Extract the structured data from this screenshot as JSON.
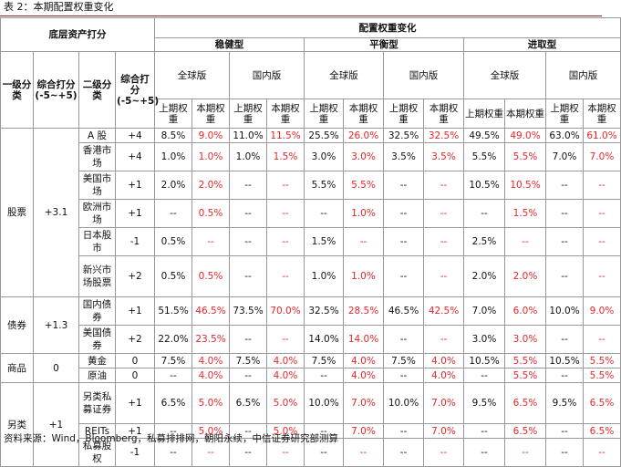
{
  "caption": "表 2：本期配置权重变化",
  "header": {
    "left_group": "底层资产打分",
    "right_group": "配置权重变化",
    "lvl1": "一级分类",
    "score1": "综合打分(-5~+5)",
    "lvl2": "二级分类",
    "score2": "综合打分(-5~+5)",
    "strategies": [
      "稳健型",
      "平衡型",
      "进取型"
    ],
    "versions": [
      "全球版",
      "国内版"
    ],
    "prev": "上期权重",
    "cur": "本期权重"
  },
  "rows": [
    {
      "group": "股票",
      "group_score": "+3.1",
      "name": "A 股",
      "score": "+4",
      "vals": [
        "8.5%",
        "9.0%",
        "11.0%",
        "11.5%",
        "25.5%",
        "26.0%",
        "32.5%",
        "32.5%",
        "49.5%",
        "49.0%",
        "63.0%",
        "61.0%"
      ]
    },
    {
      "name": "香港市场",
      "score": "+4",
      "vals": [
        "1.0%",
        "1.0%",
        "1.0%",
        "1.5%",
        "3.0%",
        "3.0%",
        "3.5%",
        "3.5%",
        "5.5%",
        "5.5%",
        "7.0%",
        "7.0%"
      ]
    },
    {
      "name": "美国市场",
      "score": "+1",
      "vals": [
        "2.0%",
        "2.0%",
        "--",
        "--",
        "5.5%",
        "5.5%",
        "--",
        "--",
        "10.5%",
        "10.5%",
        "--",
        "--"
      ]
    },
    {
      "name": "欧洲市场",
      "score": "+1",
      "vals": [
        "--",
        "0.5%",
        "--",
        "--",
        "--",
        "1.0%",
        "--",
        "--",
        "--",
        "1.5%",
        "--",
        "--"
      ]
    },
    {
      "name": "日本股市",
      "score": "-1",
      "vals": [
        "0.5%",
        "--",
        "--",
        "--",
        "1.5%",
        "--",
        "--",
        "--",
        "2.5%",
        "--",
        "--",
        "--"
      ]
    },
    {
      "name": "新兴市场股票",
      "score": "+2",
      "vals": [
        "0.5%",
        "0.5%",
        "--",
        "--",
        "1.0%",
        "1.0%",
        "--",
        "--",
        "2.0%",
        "2.0%",
        "--",
        "--"
      ]
    },
    {
      "group": "债券",
      "group_score": "+1.3",
      "name": "国内债券",
      "score": "+1",
      "vals": [
        "51.5%",
        "46.5%",
        "73.5%",
        "70.0%",
        "32.5%",
        "28.5%",
        "46.5%",
        "42.5%",
        "7.0%",
        "6.0%",
        "10.0%",
        "9.0%"
      ]
    },
    {
      "name": "美国债券",
      "score": "+2",
      "vals": [
        "22.0%",
        "23.5%",
        "--",
        "--",
        "14.0%",
        "14.0%",
        "--",
        "--",
        "3.0%",
        "3.0%",
        "--",
        "--"
      ]
    },
    {
      "group": "商品",
      "group_score": "0",
      "name": "黄金",
      "score": "0",
      "vals": [
        "7.5%",
        "4.0%",
        "7.5%",
        "4.0%",
        "7.5%",
        "4.0%",
        "7.5%",
        "4.0%",
        "10.5%",
        "5.5%",
        "10.5%",
        "5.5%"
      ]
    },
    {
      "name": "原油",
      "score": "0",
      "vals": [
        "--",
        "4.0%",
        "--",
        "4.0%",
        "--",
        "4.0%",
        "--",
        "4.0%",
        "--",
        "5.5%",
        "--",
        "5.5%"
      ]
    },
    {
      "group": "另类",
      "group_score": "+1",
      "name": "另类私募证券",
      "score": "+1",
      "vals": [
        "6.5%",
        "5.0%",
        "6.5%",
        "5.0%",
        "10.0%",
        "7.0%",
        "10.0%",
        "7.0%",
        "9.5%",
        "6.5%",
        "9.5%",
        "6.5%"
      ]
    },
    {
      "name": "REITs",
      "score": "+1",
      "vals": [
        "--",
        "5.0%",
        "--",
        "5.0%",
        "--",
        "7.0%",
        "--",
        "7.0%",
        "--",
        "6.5%",
        "--",
        "6.5%"
      ]
    },
    {
      "name": "私募股权",
      "score": "-1",
      "vals": [
        "--",
        "--",
        "--",
        "--",
        "--",
        "--",
        "--",
        "--",
        "--",
        "--",
        "--",
        "--"
      ]
    }
  ],
  "note": "资料来源：Wind，Bloomberg，私募排排网，朝阳永续，中信证券研究部测算"
}
